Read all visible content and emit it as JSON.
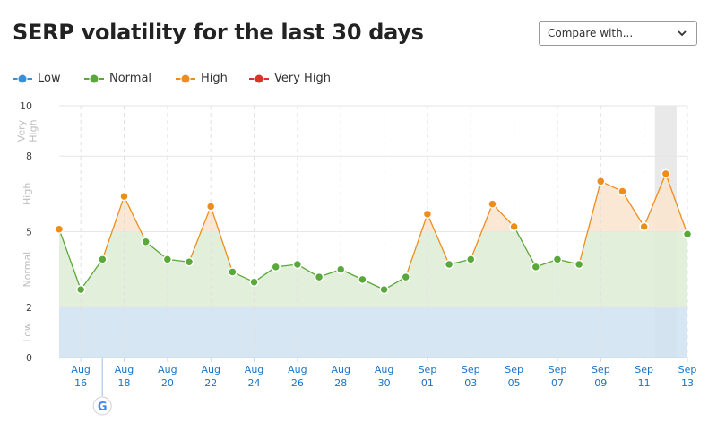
{
  "header": {
    "title": "SERP volatility for the last 30 days",
    "compare_label": "Compare with..."
  },
  "legend": [
    {
      "label": "Low",
      "color": "#3b8fd4"
    },
    {
      "label": "Normal",
      "color": "#5aa83a"
    },
    {
      "label": "High",
      "color": "#ee8d1d"
    },
    {
      "label": "Very High",
      "color": "#d9342a"
    }
  ],
  "zones": [
    {
      "label": "Low",
      "from": 0,
      "to": 2,
      "color": "#cfe3f1"
    },
    {
      "label": "Normal",
      "from": 2,
      "to": 5,
      "color": "#dfedd6"
    },
    {
      "label": "High",
      "from": 5,
      "to": 8,
      "color": "#fbe5cf"
    },
    {
      "label": "Very High",
      "from": 8,
      "to": 10,
      "color": "#f9d6d2"
    }
  ],
  "icons": {
    "google_marker": "google-g-icon",
    "compare_chevron": "chevron-down-icon"
  },
  "chart_data": {
    "type": "area",
    "title": "SERP volatility for the last 30 days",
    "ylim": [
      0,
      10
    ],
    "y_ticks": [
      0,
      2,
      5,
      8,
      10
    ],
    "grid": true,
    "x_ticks": [
      {
        "day": 16,
        "month": "Aug"
      },
      {
        "day": 18,
        "month": "Aug"
      },
      {
        "day": 20,
        "month": "Aug"
      },
      {
        "day": 22,
        "month": "Aug"
      },
      {
        "day": 24,
        "month": "Aug"
      },
      {
        "day": 26,
        "month": "Aug"
      },
      {
        "day": 28,
        "month": "Aug"
      },
      {
        "day": 30,
        "month": "Aug"
      },
      {
        "day": "01",
        "month": "Sep"
      },
      {
        "day": "03",
        "month": "Sep"
      },
      {
        "day": "05",
        "month": "Sep"
      },
      {
        "day": "07",
        "month": "Sep"
      },
      {
        "day": "09",
        "month": "Sep"
      },
      {
        "day": 11,
        "month": "Sep"
      },
      {
        "day": 13,
        "month": "Sep"
      }
    ],
    "x": [
      "Aug 15",
      "Aug 16",
      "Aug 17",
      "Aug 18",
      "Aug 19",
      "Aug 20",
      "Aug 21",
      "Aug 22",
      "Aug 23",
      "Aug 24",
      "Aug 25",
      "Aug 26",
      "Aug 27",
      "Aug 28",
      "Aug 29",
      "Aug 30",
      "Aug 31",
      "Sep 01",
      "Sep 02",
      "Sep 03",
      "Sep 04",
      "Sep 05",
      "Sep 06",
      "Sep 07",
      "Sep 08",
      "Sep 09",
      "Sep 10",
      "Sep 11",
      "Sep 12",
      "Sep 13"
    ],
    "values": [
      5.1,
      2.7,
      3.9,
      6.4,
      4.6,
      3.9,
      3.8,
      6.0,
      3.4,
      3.0,
      3.6,
      3.7,
      3.2,
      3.5,
      3.1,
      2.7,
      3.2,
      5.7,
      3.7,
      3.9,
      6.1,
      5.2,
      3.6,
      3.9,
      3.7,
      7.0,
      6.6,
      5.2,
      7.3,
      4.9
    ],
    "highlight": "Sep 12",
    "marker_date": "Aug 16"
  }
}
